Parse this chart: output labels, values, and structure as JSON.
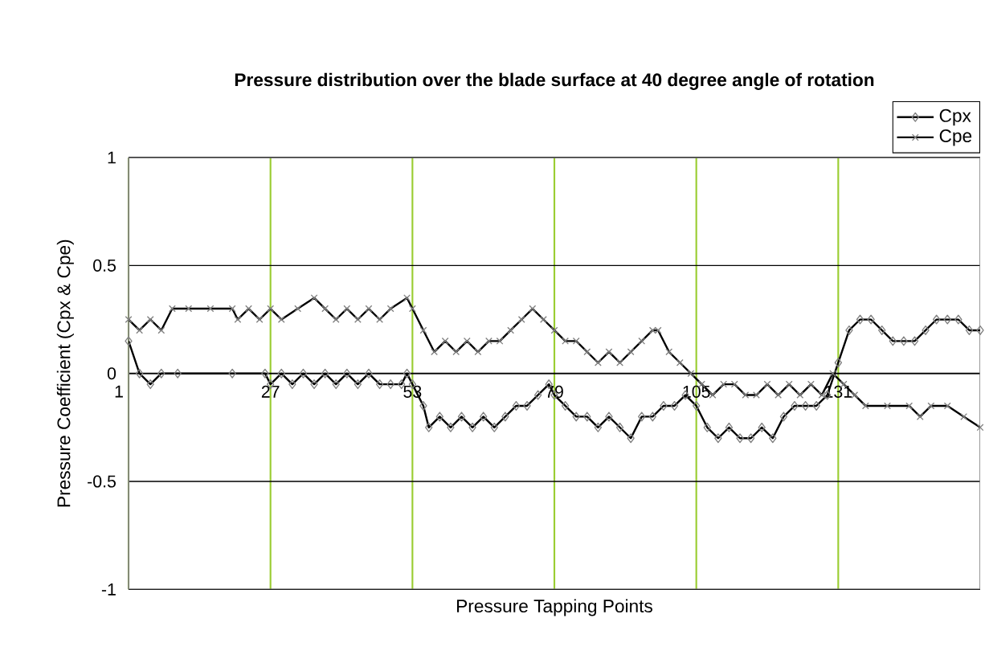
{
  "chart_data": {
    "type": "line",
    "title": "Pressure distribution over the blade surface at 40 degree angle of rotation",
    "xlabel": "Pressure Tapping Points",
    "ylabel": "Pressure Coefficient (Cpx & Cpe)",
    "xlim": [
      1,
      157
    ],
    "xticks": [
      1,
      27,
      53,
      79,
      105,
      131
    ],
    "ylim": [
      -1,
      1
    ],
    "yticks": [
      -1,
      -0.5,
      0,
      0.5,
      1
    ],
    "grid": true,
    "legend": "top right",
    "series": [
      {
        "name": "Cpx",
        "color": "#000000",
        "marker": "diamond",
        "x": [
          1,
          3,
          5,
          7,
          10,
          20,
          26,
          27,
          29,
          31,
          33,
          35,
          37,
          39,
          41,
          43,
          45,
          47,
          49,
          51,
          52,
          53,
          55,
          56,
          58,
          60,
          62,
          64,
          66,
          68,
          70,
          72,
          74,
          76,
          78,
          79,
          81,
          83,
          85,
          87,
          89,
          91,
          93,
          95,
          97,
          99,
          101,
          103,
          105,
          107,
          109,
          111,
          113,
          115,
          117,
          119,
          121,
          123,
          125,
          127,
          129,
          131,
          133,
          135,
          137,
          139,
          141,
          143,
          145,
          147,
          149,
          151,
          153,
          155,
          157
        ],
        "values": [
          0.15,
          0.0,
          -0.05,
          0.0,
          0.0,
          0.0,
          0.0,
          -0.05,
          0.0,
          -0.05,
          0.0,
          -0.05,
          0.0,
          -0.05,
          0.0,
          -0.05,
          0.0,
          -0.05,
          -0.05,
          -0.05,
          0.0,
          -0.05,
          -0.15,
          -0.25,
          -0.2,
          -0.25,
          -0.2,
          -0.25,
          -0.2,
          -0.25,
          -0.2,
          -0.15,
          -0.15,
          -0.1,
          -0.05,
          -0.1,
          -0.15,
          -0.2,
          -0.2,
          -0.25,
          -0.2,
          -0.25,
          -0.3,
          -0.2,
          -0.2,
          -0.15,
          -0.15,
          -0.1,
          -0.15,
          -0.25,
          -0.3,
          -0.25,
          -0.3,
          -0.3,
          -0.25,
          -0.3,
          -0.2,
          -0.15,
          -0.15,
          -0.15,
          -0.1,
          0.05,
          0.2,
          0.25,
          0.25,
          0.2,
          0.15,
          0.15,
          0.15,
          0.2,
          0.25,
          0.25,
          0.25,
          0.2,
          0.2
        ]
      },
      {
        "name": "Cpe",
        "color": "#000000",
        "marker": "cross",
        "x": [
          1,
          3,
          5,
          7,
          9,
          12,
          16,
          20,
          21,
          23,
          25,
          27,
          29,
          32,
          35,
          37,
          39,
          41,
          43,
          45,
          47,
          49,
          52,
          53,
          55,
          57,
          59,
          61,
          63,
          65,
          67,
          69,
          71,
          73,
          75,
          77,
          79,
          81,
          83,
          85,
          87,
          89,
          91,
          93,
          95,
          97,
          98,
          100,
          102,
          104,
          106,
          108,
          110,
          112,
          114,
          116,
          118,
          120,
          122,
          124,
          126,
          128,
          130,
          132,
          134,
          136,
          140,
          144,
          146,
          148,
          151,
          154,
          157
        ],
        "values": [
          0.25,
          0.2,
          0.25,
          0.2,
          0.3,
          0.3,
          0.3,
          0.3,
          0.25,
          0.3,
          0.25,
          0.3,
          0.25,
          0.3,
          0.35,
          0.3,
          0.25,
          0.3,
          0.25,
          0.3,
          0.25,
          0.3,
          0.35,
          0.3,
          0.2,
          0.1,
          0.15,
          0.1,
          0.15,
          0.1,
          0.15,
          0.15,
          0.2,
          0.25,
          0.3,
          0.25,
          0.2,
          0.15,
          0.15,
          0.1,
          0.05,
          0.1,
          0.05,
          0.1,
          0.15,
          0.2,
          0.2,
          0.1,
          0.05,
          0.0,
          -0.05,
          -0.1,
          -0.05,
          -0.05,
          -0.1,
          -0.1,
          -0.05,
          -0.1,
          -0.05,
          -0.1,
          -0.05,
          -0.1,
          0.0,
          -0.05,
          -0.1,
          -0.15,
          -0.15,
          -0.15,
          -0.2,
          -0.15,
          -0.15,
          -0.2,
          -0.25
        ]
      }
    ]
  }
}
